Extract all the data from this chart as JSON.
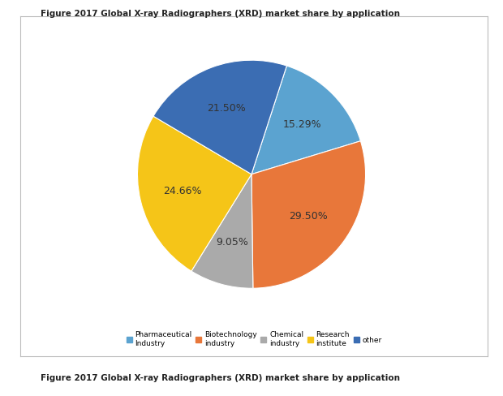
{
  "title_top": "Figure 2017 Global X-ray Radiographers (XRD) market share by application",
  "title_bottom": "Figure 2017 Global X-ray Radiographers (XRD) market share by application",
  "labels": [
    "Pharmaceutical\nIndustry",
    "Biotechnology\nindustry",
    "Chemical\nindustry",
    "Research\ninstitute",
    "other"
  ],
  "values": [
    15.29,
    29.5,
    9.05,
    24.66,
    21.5
  ],
  "colors": [
    "#5BA3D0",
    "#E8773A",
    "#AAAAAA",
    "#F5C518",
    "#3B6DB3"
  ],
  "pct_labels": [
    "15.29%",
    "29.50%",
    "9.05%",
    "24.66%",
    "21.50%"
  ],
  "startangle": 72,
  "background_color": "#FFFFFF",
  "legend_labels": [
    "Pharmaceutical\nIndustry",
    "Biotechnology\nindustry",
    "Chemical\nindustry",
    "Research\ninstitute",
    "other"
  ]
}
